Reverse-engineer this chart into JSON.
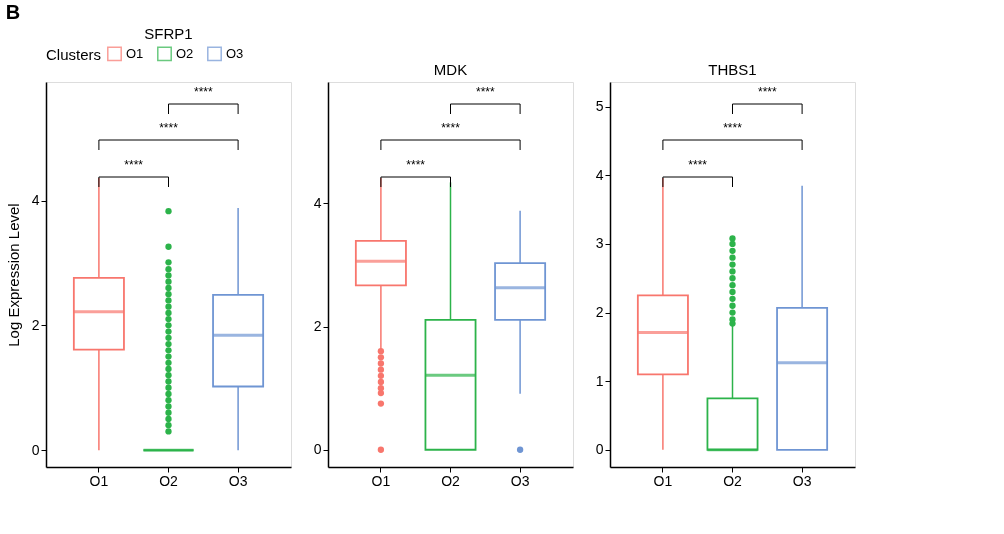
{
  "chart_data": [
    {
      "type": "box",
      "title": "SFRP1",
      "ylabel": "Log Expression Level",
      "legend_title": "Clusters",
      "legend": "top",
      "categories": [
        "O1",
        "O2",
        "O3"
      ],
      "ylim": [
        -0.27,
        5.9
      ],
      "yticks": [
        0,
        2,
        4
      ],
      "grid": false,
      "annotations": [
        "B",
        "****",
        "****",
        "****"
      ],
      "series": [
        {
          "name": "O1",
          "color": "#f8766d",
          "boxes": [
            {
              "low": 0,
              "q1": 1.61,
              "median": 2.22,
              "q3": 2.76,
              "high": 4.36
            },
            null,
            null
          ]
        },
        {
          "name": "O2",
          "color": "#2cb34a",
          "boxes": [
            null,
            {
              "low": 0,
              "q1": 0,
              "median": 0,
              "q3": 0,
              "high": 0,
              "outliers": [
                0.3,
                0.4,
                0.5,
                0.6,
                0.7,
                0.8,
                0.9,
                1.0,
                1.1,
                1.2,
                1.3,
                1.4,
                1.5,
                1.6,
                1.7,
                1.8,
                1.9,
                2.0,
                2.1,
                2.2,
                2.3,
                2.4,
                2.5,
                2.6,
                2.7,
                2.8,
                2.9,
                3.01,
                3.26,
                3.83
              ]
            },
            null
          ]
        },
        {
          "name": "O3",
          "color": "#6f95d3",
          "boxes": [
            null,
            null,
            {
              "low": 0,
              "q1": 1.02,
              "median": 1.84,
              "q3": 2.49,
              "high": 3.88
            }
          ]
        }
      ]
    },
    {
      "type": "box",
      "title": "MDK",
      "categories": [
        "O1",
        "O2",
        "O3"
      ],
      "ylim": [
        -0.28,
        5.97
      ],
      "yticks": [
        0,
        2,
        4
      ],
      "grid": false,
      "annotations": [
        "****",
        "****",
        "****"
      ],
      "series": [
        {
          "color": "#f8766d",
          "boxes": [
            {
              "low": 1.62,
              "q1": 2.67,
              "median": 3.06,
              "q3": 3.39,
              "high": 4.41,
              "outliers": [
                0,
                0.75,
                0.92,
                1.0,
                1.1,
                1.2,
                1.3,
                1.4,
                1.5,
                1.6
              ]
            },
            null,
            null
          ]
        },
        {
          "color": "#2cb34a",
          "boxes": [
            null,
            {
              "low": 0,
              "q1": 0,
              "median": 1.21,
              "q3": 2.11,
              "high": 4.34
            },
            null
          ]
        },
        {
          "color": "#6f95d3",
          "boxes": [
            null,
            null,
            {
              "low": 0.91,
              "q1": 2.11,
              "median": 2.63,
              "q3": 3.03,
              "high": 3.88,
              "outliers": [
                0
              ]
            }
          ]
        }
      ]
    },
    {
      "type": "box",
      "title": "THBS1",
      "categories": [
        "O1",
        "O2",
        "O3"
      ],
      "ylim": [
        -0.25,
        5.36
      ],
      "yticks": [
        0,
        1,
        2,
        3,
        4,
        5
      ],
      "grid": false,
      "annotations": [
        "****",
        "****",
        "****"
      ],
      "series": [
        {
          "color": "#f8766d",
          "boxes": [
            {
              "low": 0,
              "q1": 1.1,
              "median": 1.71,
              "q3": 2.25,
              "high": 3.96
            },
            null,
            null
          ]
        },
        {
          "color": "#2cb34a",
          "boxes": [
            null,
            {
              "low": 0,
              "q1": 0,
              "median": 0,
              "q3": 0.75,
              "high": 1.84,
              "outliers": [
                1.84,
                1.9,
                2.0,
                2.1,
                2.2,
                2.3,
                2.4,
                2.5,
                2.6,
                2.7,
                2.8,
                2.9,
                3.0,
                3.08
              ]
            },
            null
          ]
        },
        {
          "color": "#6f95d3",
          "boxes": [
            null,
            null,
            {
              "low": 0,
              "q1": 0,
              "median": 1.27,
              "q3": 2.07,
              "high": 3.85
            }
          ]
        }
      ]
    }
  ]
}
